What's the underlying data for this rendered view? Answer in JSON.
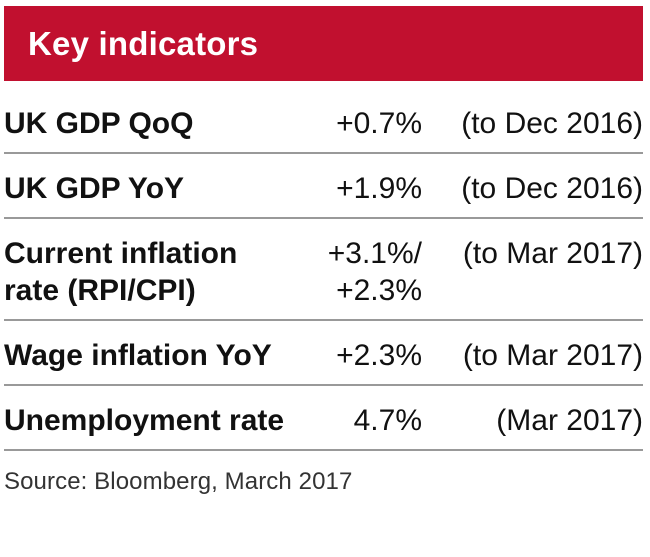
{
  "header": {
    "title": "Key indicators",
    "background_color": "#c1102f",
    "text_color": "#ffffff"
  },
  "rows": [
    {
      "label_lines": [
        "UK GDP QoQ"
      ],
      "value_lines": [
        "+0.7%"
      ],
      "period": "(to Dec 2016)"
    },
    {
      "label_lines": [
        "UK  GDP YoY"
      ],
      "value_lines": [
        "+1.9%"
      ],
      "period": "(to Dec 2016)"
    },
    {
      "label_lines": [
        "Current inflation",
        "rate (RPI/CPI)"
      ],
      "value_lines": [
        "+3.1%/",
        "+2.3%"
      ],
      "period": "(to Mar 2017)"
    },
    {
      "label_lines": [
        "Wage inflation YoY"
      ],
      "value_lines": [
        "+2.3%"
      ],
      "period": "(to Mar 2017)"
    },
    {
      "label_lines": [
        "Unemployment rate"
      ],
      "value_lines": [
        "4.7%"
      ],
      "period": "(Mar 2017)"
    }
  ],
  "footer": {
    "source": "Source: Bloomberg, March 2017"
  }
}
